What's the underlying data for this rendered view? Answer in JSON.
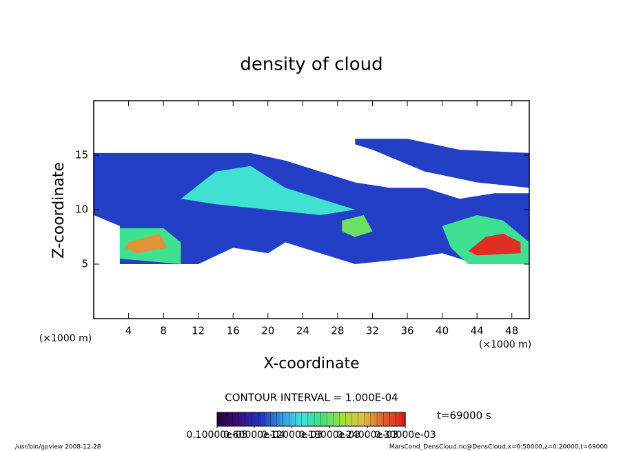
{
  "chart_data": {
    "type": "contour",
    "title": "density of cloud",
    "x_label": "X-coordinate",
    "y_label": "Z-coordinate",
    "x_unit": "(×1000 m)",
    "x_unit_right": "(×1000 m)",
    "xlim": [
      0,
      50
    ],
    "ylim": [
      0,
      20
    ],
    "xticks": [
      4,
      8,
      12,
      16,
      20,
      24,
      28,
      32,
      36,
      40,
      44,
      48
    ],
    "yticks": [
      5,
      10,
      15
    ],
    "contour_interval": "CONTOUR INTERVAL = 1.000E-04",
    "time_label": "t=69000 s",
    "colorbar": {
      "lim": [
        1e-06,
        0.0003
      ],
      "colors": [
        "#2a0040",
        "#3a1080",
        "#2030c0",
        "#3090e0",
        "#40e0e0",
        "#40e080",
        "#a0e040",
        "#e0c040",
        "#e06030",
        "#e02020"
      ],
      "ticks": [
        {
          "value": 1e-06,
          "label": "0.10000e-05"
        },
        {
          "value": 6e-05,
          "label": "0.60000e-04"
        },
        {
          "value": 0.00012,
          "label": "0.12000e-03"
        },
        {
          "value": 0.00018,
          "label": "0.18000e-03"
        },
        {
          "value": 0.00024,
          "label": "0.24000e-03"
        },
        {
          "value": 0.0003,
          "label": "0.30000e-03"
        }
      ]
    },
    "regions": [
      {
        "level": 2e-05,
        "x": [
          0,
          18,
          22,
          26,
          30,
          34,
          38,
          42,
          46,
          50,
          50,
          44,
          40,
          36,
          30,
          26,
          22,
          20,
          16,
          12,
          3,
          3,
          0
        ],
        "z": [
          15.2,
          15.2,
          14.5,
          13.5,
          12.5,
          12,
          12,
          11,
          11.5,
          11.5,
          5,
          5,
          6,
          5.5,
          5,
          6,
          7,
          6,
          6.5,
          5,
          5,
          8.5,
          9.5
        ]
      },
      {
        "level": 2e-05,
        "x": [
          30,
          36,
          42,
          50,
          50,
          44,
          38,
          32,
          30
        ],
        "z": [
          16.5,
          16.5,
          15.5,
          15.2,
          12,
          12.5,
          13.5,
          15.5,
          16
        ]
      },
      {
        "level": 5e-05,
        "x": [
          10,
          14,
          18,
          22,
          26,
          30,
          26,
          20,
          14
        ],
        "z": [
          11,
          13.5,
          14,
          12,
          11,
          10,
          9.5,
          10,
          10.5
        ]
      },
      {
        "level": 6e-05,
        "x": [
          3,
          8,
          10,
          10,
          3
        ],
        "z": [
          8.3,
          8.3,
          7,
          5,
          5.5
        ]
      },
      {
        "level": 0.0001,
        "x": [
          4,
          7.5,
          8.5,
          5,
          3.5
        ],
        "z": [
          7,
          7.8,
          6.5,
          6,
          6.5
        ]
      },
      {
        "level": 6e-05,
        "x": [
          40,
          44,
          47,
          50,
          50,
          43,
          41
        ],
        "z": [
          8.5,
          9.5,
          9,
          7,
          5,
          5,
          6.5
        ]
      },
      {
        "level": 0.00012,
        "x": [
          43,
          45,
          47,
          49,
          49,
          44
        ],
        "z": [
          6.2,
          7.5,
          7.8,
          7,
          6,
          5.8
        ]
      },
      {
        "level": 7e-05,
        "x": [
          28.5,
          31,
          32,
          30,
          28.5
        ],
        "z": [
          9,
          9.5,
          8,
          7.5,
          8
        ]
      }
    ],
    "footer_left": "/usr/bin/gpview  2008-12-28",
    "footer_right": "MarsCond_DensCloud.nc@DensCloud,x=0:50000,z=0:20000,t=69000"
  }
}
